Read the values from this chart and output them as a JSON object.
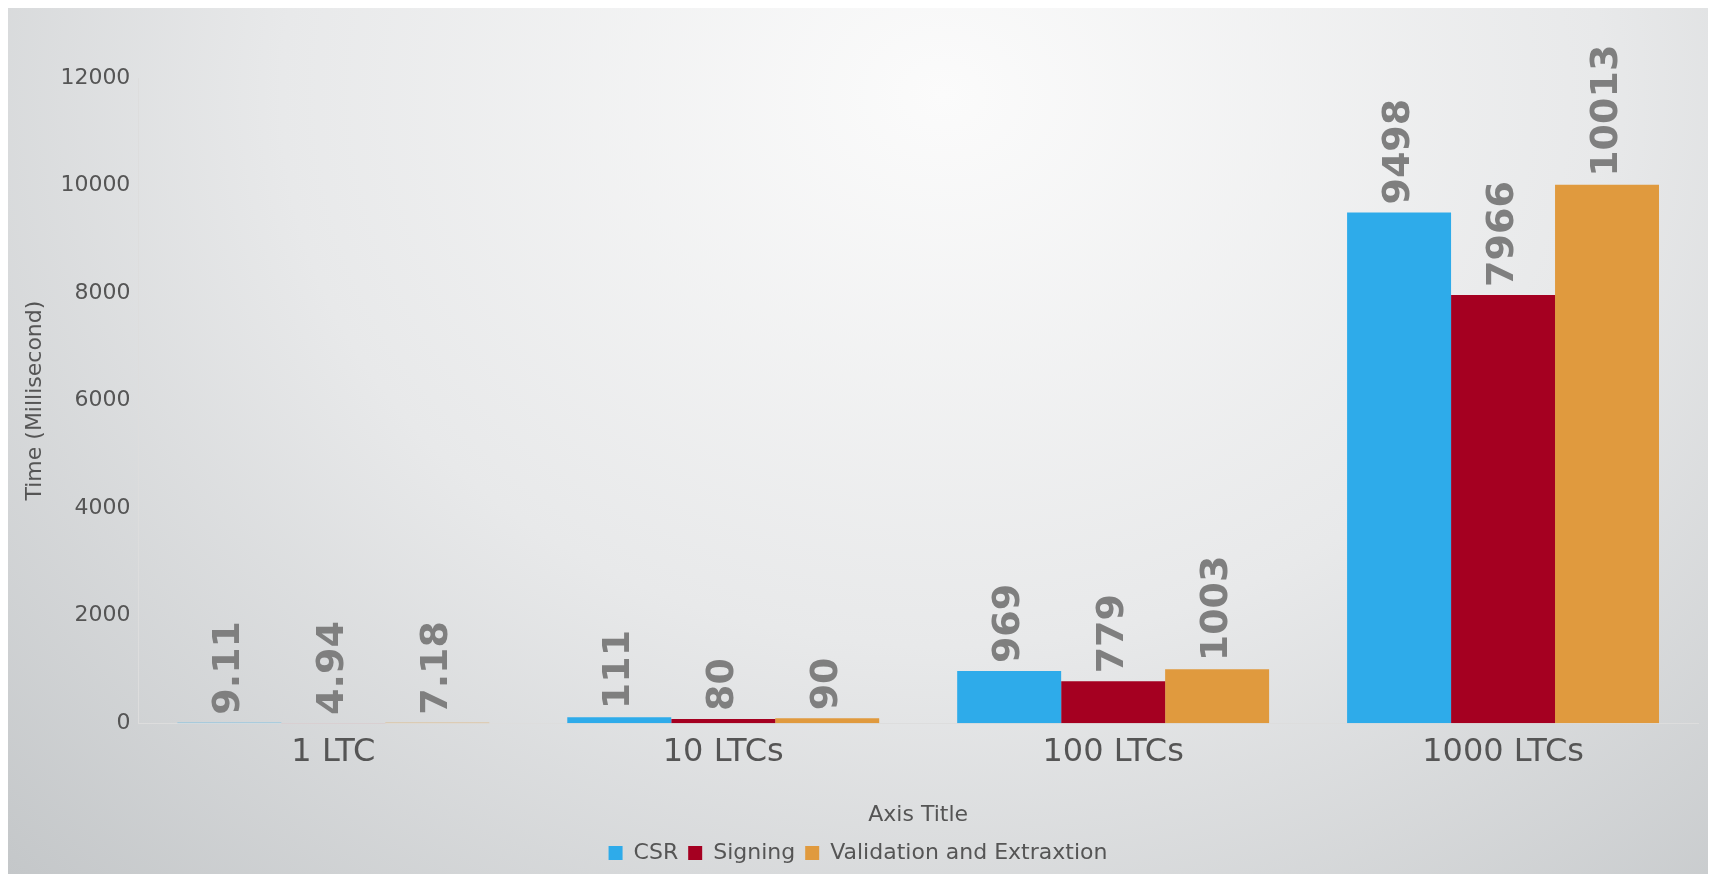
{
  "chart_data": {
    "type": "bar",
    "xlabel": "Axis Title",
    "ylabel": "Time (Millisecond)",
    "categories": [
      "1 LTC",
      "10 LTCs",
      "100 LTCs",
      "1000 LTCs"
    ],
    "series": [
      {
        "name": "CSR",
        "color": "#2eabea",
        "values": [
          9.11,
          111,
          969,
          9498
        ]
      },
      {
        "name": "Signing",
        "color": "#a50021",
        "values": [
          4.94,
          80,
          779,
          7966
        ]
      },
      {
        "name": "Validation and Extraxtion",
        "color": "#e09a3e",
        "values": [
          7.18,
          90,
          1003,
          10013
        ]
      }
    ],
    "ylim": [
      0,
      12000
    ],
    "yticks": [
      0,
      2000,
      4000,
      6000,
      8000,
      10000,
      12000
    ],
    "grid": false,
    "legend": "bottom",
    "data_labels": true
  }
}
